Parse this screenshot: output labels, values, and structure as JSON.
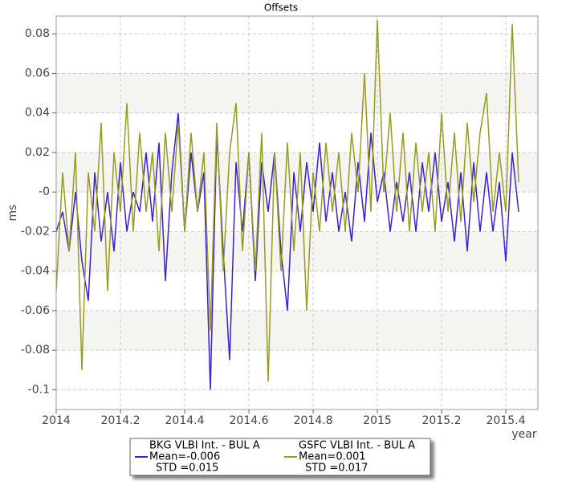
{
  "chart_data": {
    "type": "line",
    "title": "Offsets",
    "x_label": "year",
    "y_label": "ms",
    "xlim": [
      2014,
      2015.5
    ],
    "ylim": [
      -0.11,
      0.089
    ],
    "xticks": [
      2014,
      2014.2,
      2014.4,
      2014.6,
      2014.8,
      2015,
      2015.2,
      2015.4
    ],
    "yticks": [
      0.08,
      0.06,
      0.04,
      0.02,
      {
        "value": 0,
        "label": "-0"
      },
      -0.02,
      -0.04,
      -0.06,
      -0.08,
      -0.1
    ],
    "grid": true,
    "x": [
      2014.0,
      2014.02,
      2014.04,
      2014.06,
      2014.08,
      2014.1,
      2014.12,
      2014.14,
      2014.16,
      2014.18,
      2014.2,
      2014.22,
      2014.24,
      2014.26,
      2014.28,
      2014.3,
      2014.32,
      2014.34,
      2014.36,
      2014.38,
      2014.4,
      2014.42,
      2014.44,
      2014.46,
      2014.48,
      2014.5,
      2014.52,
      2014.54,
      2014.56,
      2014.58,
      2014.6,
      2014.62,
      2014.64,
      2014.66,
      2014.68,
      2014.7,
      2014.72,
      2014.74,
      2014.76,
      2014.78,
      2014.8,
      2014.82,
      2014.84,
      2014.86,
      2014.88,
      2014.9,
      2014.92,
      2014.94,
      2014.96,
      2014.98,
      2015.0,
      2015.02,
      2015.04,
      2015.06,
      2015.08,
      2015.1,
      2015.12,
      2015.14,
      2015.16,
      2015.18,
      2015.2,
      2015.22,
      2015.24,
      2015.26,
      2015.28,
      2015.3,
      2015.32,
      2015.34,
      2015.36,
      2015.38,
      2015.4,
      2015.42,
      2015.44
    ],
    "series": [
      {
        "name": "BKG VLBI Int. - BUL A",
        "mean_label": "Mean=-0.006",
        "std_label": "STD =0.015",
        "color": "#3c1fd8",
        "values": [
          -0.02,
          -0.01,
          -0.03,
          0.0,
          -0.035,
          -0.055,
          0.01,
          -0.025,
          0.0,
          -0.03,
          0.015,
          -0.02,
          0.0,
          -0.01,
          0.02,
          -0.015,
          0.025,
          -0.045,
          0.01,
          0.04,
          -0.02,
          0.02,
          -0.01,
          0.01,
          -0.1,
          0.03,
          -0.03,
          -0.085,
          0.015,
          -0.02,
          0.02,
          -0.045,
          0.015,
          -0.01,
          0.02,
          -0.03,
          -0.06,
          0.01,
          -0.02,
          0.015,
          -0.01,
          0.025,
          -0.015,
          0.01,
          -0.02,
          0.0,
          -0.025,
          0.015,
          -0.015,
          0.03,
          -0.005,
          0.01,
          -0.02,
          0.005,
          -0.015,
          0.01,
          -0.02,
          0.015,
          -0.01,
          0.02,
          -0.015,
          0.005,
          -0.025,
          0.01,
          -0.03,
          0.015,
          -0.02,
          0.01,
          -0.02,
          0.005,
          -0.035,
          0.02,
          -0.01
        ]
      },
      {
        "name": "GSFC VLBI Int. - BUL A",
        "mean_label": "Mean=0.001",
        "std_label": "STD =0.017",
        "color": "#9a9a1e",
        "values": [
          -0.05,
          0.01,
          -0.03,
          0.02,
          -0.09,
          0.01,
          -0.02,
          0.035,
          -0.05,
          0.02,
          -0.01,
          0.045,
          -0.02,
          0.03,
          -0.01,
          0.02,
          -0.03,
          0.03,
          -0.01,
          0.035,
          -0.02,
          0.03,
          -0.01,
          0.02,
          -0.07,
          0.035,
          -0.04,
          0.02,
          0.045,
          -0.03,
          0.02,
          -0.04,
          0.03,
          -0.096,
          0.02,
          -0.04,
          0.025,
          -0.03,
          0.02,
          -0.06,
          0.01,
          -0.02,
          0.025,
          -0.01,
          0.02,
          -0.02,
          0.03,
          0.0,
          0.06,
          -0.01,
          0.087,
          0.0,
          0.04,
          -0.01,
          0.03,
          -0.02,
          0.025,
          -0.01,
          0.02,
          -0.02,
          0.04,
          -0.01,
          0.03,
          -0.015,
          0.035,
          -0.005,
          0.03,
          0.05,
          -0.01,
          0.02,
          -0.01,
          0.085,
          0.005
        ]
      }
    ]
  }
}
